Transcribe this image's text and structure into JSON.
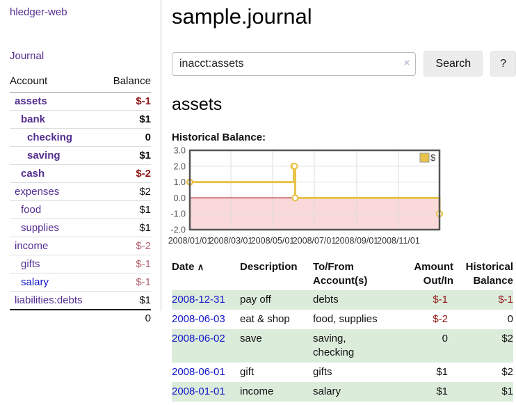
{
  "app": {
    "brand": "hledger-web",
    "nav_journal": "Journal"
  },
  "sidebar": {
    "headers": {
      "account": "Account",
      "balance": "Balance"
    },
    "accounts": [
      {
        "name": "assets",
        "balance": "$-1",
        "indent": 0,
        "current": true,
        "name_style": "purple",
        "balance_style": "neg-strong"
      },
      {
        "name": "bank",
        "balance": "$1",
        "indent": 1,
        "current": true,
        "name_style": "purple",
        "balance_style": "plain"
      },
      {
        "name": "checking",
        "balance": "0",
        "indent": 2,
        "current": true,
        "name_style": "purple",
        "balance_style": "plain"
      },
      {
        "name": "saving",
        "balance": "$1",
        "indent": 2,
        "current": true,
        "name_style": "purple",
        "balance_style": "plain"
      },
      {
        "name": "cash",
        "balance": "$-2",
        "indent": 1,
        "current": true,
        "name_style": "purple",
        "balance_style": "neg-strong"
      },
      {
        "name": "expenses",
        "balance": "$2",
        "indent": 0,
        "current": false,
        "name_style": "purple",
        "balance_style": "plain"
      },
      {
        "name": "food",
        "balance": "$1",
        "indent": 1,
        "current": false,
        "name_style": "purple",
        "balance_style": "plain"
      },
      {
        "name": "supplies",
        "balance": "$1",
        "indent": 1,
        "current": false,
        "name_style": "purple",
        "balance_style": "plain"
      },
      {
        "name": "income",
        "balance": "$-2",
        "indent": 0,
        "current": false,
        "name_style": "purple",
        "balance_style": "neg-soft"
      },
      {
        "name": "gifts",
        "balance": "$-1",
        "indent": 1,
        "current": false,
        "name_style": "purple",
        "balance_style": "neg-soft"
      },
      {
        "name": "salary",
        "balance": "$-1",
        "indent": 1,
        "current": false,
        "name_style": "blue",
        "balance_style": "neg-soft"
      },
      {
        "name": "liabilities:debts",
        "balance": "$1",
        "indent": 0,
        "current": false,
        "name_style": "purple",
        "balance_style": "plain"
      }
    ],
    "total": "0"
  },
  "header": {
    "title": "sample.journal"
  },
  "search": {
    "value": "inacct:assets",
    "clear_label": "×",
    "button_label": "Search",
    "help_label": "?"
  },
  "account_page": {
    "heading": "assets",
    "chart_label": "Historical Balance:"
  },
  "chart_data": {
    "type": "line",
    "style": "step",
    "title": "Historical Balance",
    "legend": "$",
    "points": [
      [
        "2008-01-01",
        1
      ],
      [
        "2008-06-01",
        2
      ],
      [
        "2008-06-02",
        2
      ],
      [
        "2008-06-03",
        0
      ],
      [
        "2008-12-31",
        -1
      ]
    ],
    "xlim": [
      "2008-01-01",
      "2008-12-31"
    ],
    "ylim": [
      -2,
      3
    ],
    "yticks": [
      "3.0",
      "2.0",
      "1.0",
      "0.0",
      "-1.0",
      "-2.0"
    ],
    "xticks": [
      {
        "date": "2008-01-01",
        "label": "2008/01/01"
      },
      {
        "date": "2008-03-01",
        "label": "2008/03/01"
      },
      {
        "date": "2008-05-01",
        "label": "2008/05/01"
      },
      {
        "date": "2008-07-01",
        "label": "2008/07/01"
      },
      {
        "date": "2008-09-01",
        "label": "2008/09/01"
      },
      {
        "date": "2008-11-01",
        "label": "2008/11/01"
      }
    ],
    "grid": true,
    "legend_position": "top-right",
    "colors": {
      "line": "#e8c24a",
      "below_zero_fill": "#f9d9d9",
      "zero_line": "#a51111",
      "grid": "#dddddd",
      "border": "#555555"
    }
  },
  "register": {
    "sort_icon": "∧",
    "columns": [
      {
        "label": "Date"
      },
      {
        "label": "Description"
      },
      {
        "label": "To/From Account(s)"
      },
      {
        "label": "Amount Out/In"
      },
      {
        "label": "Historical Balance"
      }
    ],
    "rows": [
      {
        "date": "2008-12-31",
        "description": "pay off",
        "accounts": "debts",
        "amount": "$-1",
        "amount_negative": true,
        "balance": "$-1",
        "balance_negative": true
      },
      {
        "date": "2008-06-03",
        "description": "eat & shop",
        "accounts": "food, supplies",
        "amount": "$-2",
        "amount_negative": true,
        "balance": "0",
        "balance_negative": false
      },
      {
        "date": "2008-06-02",
        "description": "save",
        "accounts": "saving, checking",
        "amount": "0",
        "amount_negative": false,
        "balance": "$2",
        "balance_negative": false
      },
      {
        "date": "2008-06-01",
        "description": "gift",
        "accounts": "gifts",
        "amount": "$1",
        "amount_negative": false,
        "balance": "$2",
        "balance_negative": false
      },
      {
        "date": "2008-01-01",
        "description": "income",
        "accounts": "salary",
        "amount": "$1",
        "amount_negative": false,
        "balance": "$1",
        "balance_negative": false
      }
    ]
  }
}
